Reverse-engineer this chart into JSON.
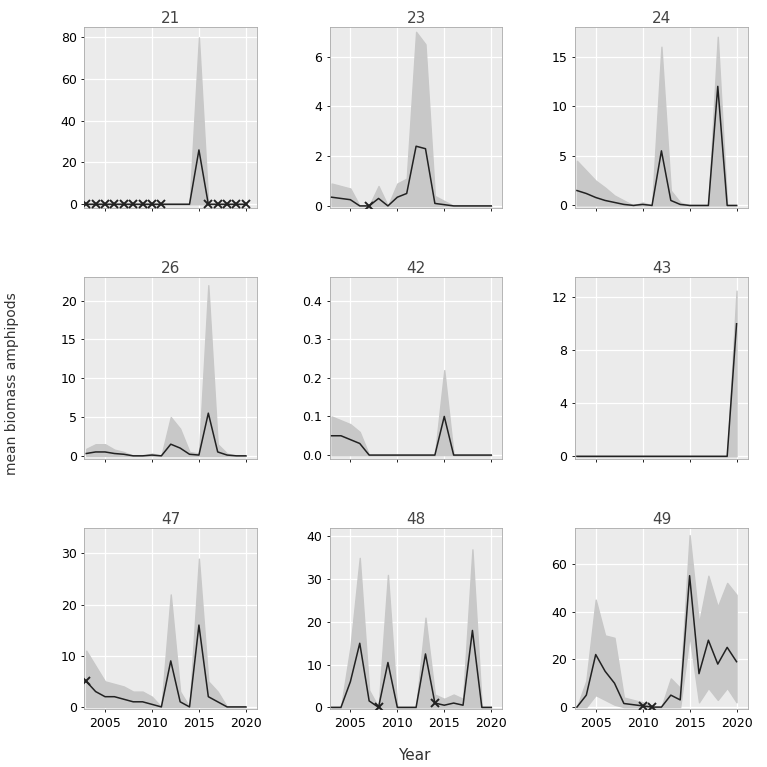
{
  "panels": [
    {
      "id": "21",
      "years": [
        2003,
        2004,
        2005,
        2006,
        2007,
        2008,
        2009,
        2010,
        2011,
        2012,
        2013,
        2014,
        2015,
        2016,
        2017,
        2018,
        2019,
        2020
      ],
      "mean": [
        0,
        0,
        0,
        0,
        0,
        0,
        0,
        0,
        0,
        0,
        0,
        0,
        26,
        0,
        0,
        0,
        0,
        0
      ],
      "sd_upper": [
        0,
        0,
        0,
        0,
        0,
        0,
        0,
        0,
        0,
        0,
        0,
        0,
        80,
        0,
        0,
        0,
        0,
        0
      ],
      "sd_lower": [
        0,
        0,
        0,
        0,
        0,
        0,
        0,
        0,
        0,
        0,
        0,
        0,
        0,
        0,
        0,
        0,
        0,
        0
      ],
      "low_sample": [
        2003,
        2004,
        2005,
        2006,
        2007,
        2008,
        2009,
        2010,
        2011,
        2016,
        2017,
        2018,
        2019,
        2020
      ],
      "yticks": [
        0,
        20,
        40,
        60,
        80
      ],
      "ylim": [
        -2,
        85
      ]
    },
    {
      "id": "23",
      "years": [
        2003,
        2004,
        2005,
        2006,
        2007,
        2008,
        2009,
        2010,
        2011,
        2012,
        2013,
        2014,
        2015,
        2016,
        2017,
        2018,
        2019,
        2020
      ],
      "mean": [
        0.35,
        0.3,
        0.25,
        0.0,
        0.0,
        0.3,
        0.0,
        0.35,
        0.5,
        2.4,
        2.3,
        0.1,
        0.05,
        0.0,
        0.0,
        0.0,
        0.0,
        0.0
      ],
      "sd_upper": [
        0.9,
        0.8,
        0.7,
        0.0,
        0.0,
        0.8,
        0.0,
        0.9,
        1.1,
        7.0,
        6.5,
        0.4,
        0.2,
        0.0,
        0.0,
        0.0,
        0.0,
        0.0
      ],
      "sd_lower": [
        0.0,
        0.0,
        0.0,
        0.0,
        0.0,
        0.0,
        0.0,
        0.0,
        0.0,
        0.0,
        0.0,
        0.0,
        0.0,
        0.0,
        0.0,
        0.0,
        0.0,
        0.0
      ],
      "low_sample": [
        2007
      ],
      "yticks": [
        0,
        2,
        4,
        6
      ],
      "ylim": [
        -0.1,
        7.2
      ]
    },
    {
      "id": "24",
      "years": [
        2003,
        2004,
        2005,
        2006,
        2007,
        2008,
        2009,
        2010,
        2011,
        2012,
        2013,
        2014,
        2015,
        2016,
        2017,
        2018,
        2019,
        2020
      ],
      "mean": [
        1.5,
        1.2,
        0.8,
        0.5,
        0.3,
        0.1,
        0.0,
        0.1,
        0.0,
        5.5,
        0.5,
        0.1,
        0.0,
        0.0,
        0.0,
        12.0,
        0.0,
        0.0
      ],
      "sd_upper": [
        4.5,
        3.5,
        2.5,
        1.8,
        1.0,
        0.5,
        0.0,
        0.3,
        0.0,
        16.0,
        1.5,
        0.3,
        0.0,
        0.0,
        0.0,
        17.0,
        0.0,
        0.0
      ],
      "sd_lower": [
        0.0,
        0.0,
        0.0,
        0.0,
        0.0,
        0.0,
        0.0,
        0.0,
        0.0,
        0.0,
        0.0,
        0.0,
        0.0,
        0.0,
        0.0,
        0.0,
        0.0,
        0.0
      ],
      "low_sample": [],
      "yticks": [
        0,
        5,
        10,
        15
      ],
      "ylim": [
        -0.3,
        18
      ]
    },
    {
      "id": "26",
      "years": [
        2003,
        2004,
        2005,
        2006,
        2007,
        2008,
        2009,
        2010,
        2011,
        2012,
        2013,
        2014,
        2015,
        2016,
        2017,
        2018,
        2019,
        2020
      ],
      "mean": [
        0.3,
        0.5,
        0.5,
        0.3,
        0.2,
        0.0,
        0.0,
        0.1,
        0.0,
        1.5,
        1.0,
        0.2,
        0.1,
        5.5,
        0.5,
        0.1,
        0.0,
        0.0
      ],
      "sd_upper": [
        0.9,
        1.5,
        1.5,
        0.8,
        0.5,
        0.0,
        0.0,
        0.3,
        0.0,
        5.0,
        3.5,
        0.5,
        0.3,
        22.0,
        1.5,
        0.3,
        0.0,
        0.0
      ],
      "sd_lower": [
        0.0,
        0.0,
        0.0,
        0.0,
        0.0,
        0.0,
        0.0,
        0.0,
        0.0,
        0.0,
        0.0,
        0.0,
        0.0,
        0.0,
        0.0,
        0.0,
        0.0,
        0.0
      ],
      "low_sample": [],
      "yticks": [
        0,
        5,
        10,
        15,
        20
      ],
      "ylim": [
        -0.4,
        23
      ]
    },
    {
      "id": "42",
      "years": [
        2003,
        2004,
        2005,
        2006,
        2007,
        2008,
        2009,
        2010,
        2011,
        2012,
        2013,
        2014,
        2015,
        2016,
        2017,
        2018,
        2019,
        2020
      ],
      "mean": [
        0.05,
        0.05,
        0.04,
        0.03,
        0.0,
        0.0,
        0.0,
        0.0,
        0.0,
        0.0,
        0.0,
        0.0,
        0.1,
        0.0,
        0.0,
        0.0,
        0.0,
        0.0
      ],
      "sd_upper": [
        0.1,
        0.09,
        0.08,
        0.06,
        0.0,
        0.0,
        0.0,
        0.0,
        0.0,
        0.0,
        0.0,
        0.0,
        0.22,
        0.0,
        0.0,
        0.0,
        0.0,
        0.0
      ],
      "sd_lower": [
        0.0,
        0.0,
        0.0,
        0.0,
        0.0,
        0.0,
        0.0,
        0.0,
        0.0,
        0.0,
        0.0,
        0.0,
        0.0,
        0.0,
        0.0,
        0.0,
        0.0,
        0.0
      ],
      "low_sample": [],
      "yticks": [
        0.0,
        0.1,
        0.2,
        0.3,
        0.4
      ],
      "ylim": [
        -0.01,
        0.46
      ]
    },
    {
      "id": "43",
      "years": [
        2003,
        2004,
        2005,
        2006,
        2007,
        2008,
        2009,
        2010,
        2011,
        2012,
        2013,
        2014,
        2015,
        2016,
        2017,
        2018,
        2019,
        2020
      ],
      "mean": [
        0.0,
        0.0,
        0.0,
        0.0,
        0.0,
        0.0,
        0.0,
        0.0,
        0.0,
        0.0,
        0.0,
        0.0,
        0.0,
        0.0,
        0.0,
        0.0,
        0.0,
        10.0
      ],
      "sd_upper": [
        0.0,
        0.0,
        0.0,
        0.0,
        0.0,
        0.0,
        0.0,
        0.0,
        0.0,
        0.0,
        0.0,
        0.0,
        0.0,
        0.0,
        0.0,
        0.0,
        0.0,
        12.5
      ],
      "sd_lower": [
        0.0,
        0.0,
        0.0,
        0.0,
        0.0,
        0.0,
        0.0,
        0.0,
        0.0,
        0.0,
        0.0,
        0.0,
        0.0,
        0.0,
        0.0,
        0.0,
        0.0,
        0.0
      ],
      "low_sample": [],
      "yticks": [
        0,
        4,
        8,
        12
      ],
      "ylim": [
        -0.2,
        13.5
      ]
    },
    {
      "id": "47",
      "years": [
        2003,
        2004,
        2005,
        2006,
        2007,
        2008,
        2009,
        2010,
        2011,
        2012,
        2013,
        2014,
        2015,
        2016,
        2017,
        2018,
        2019,
        2020
      ],
      "mean": [
        5.0,
        3.0,
        2.0,
        2.0,
        1.5,
        1.0,
        1.0,
        0.5,
        0.0,
        9.0,
        1.0,
        0.0,
        16.0,
        2.0,
        1.0,
        0.0,
        0.0,
        0.0
      ],
      "sd_upper": [
        11.0,
        8.0,
        5.0,
        4.5,
        4.0,
        3.0,
        3.0,
        2.0,
        0.0,
        22.0,
        3.0,
        0.0,
        29.0,
        5.0,
        3.0,
        0.0,
        0.0,
        0.0
      ],
      "sd_lower": [
        0.0,
        0.0,
        0.0,
        0.0,
        0.0,
        0.0,
        0.0,
        0.0,
        0.0,
        0.0,
        0.0,
        0.0,
        0.0,
        0.0,
        0.0,
        0.0,
        0.0,
        0.0
      ],
      "low_sample": [
        2003
      ],
      "yticks": [
        0,
        10,
        20,
        30
      ],
      "ylim": [
        -0.5,
        35
      ]
    },
    {
      "id": "48",
      "years": [
        2003,
        2004,
        2005,
        2006,
        2007,
        2008,
        2009,
        2010,
        2011,
        2012,
        2013,
        2014,
        2015,
        2016,
        2017,
        2018,
        2019,
        2020
      ],
      "mean": [
        0.0,
        0.0,
        6.0,
        15.0,
        1.5,
        0.0,
        10.5,
        0.0,
        0.0,
        0.0,
        12.5,
        1.0,
        0.5,
        1.0,
        0.5,
        18.0,
        0.0,
        0.0
      ],
      "sd_upper": [
        0.0,
        0.0,
        14.0,
        35.0,
        4.0,
        0.0,
        31.0,
        0.0,
        0.0,
        0.0,
        21.0,
        3.0,
        2.0,
        3.0,
        2.0,
        37.0,
        0.0,
        0.0
      ],
      "sd_lower": [
        0.0,
        0.0,
        0.0,
        0.0,
        0.0,
        0.0,
        0.0,
        0.0,
        0.0,
        0.0,
        0.0,
        0.0,
        0.0,
        0.0,
        0.0,
        0.0,
        0.0,
        0.0
      ],
      "low_sample": [
        2008,
        2014
      ],
      "yticks": [
        0,
        10,
        20,
        30,
        40
      ],
      "ylim": [
        -0.5,
        42
      ]
    },
    {
      "id": "49",
      "years": [
        2003,
        2004,
        2005,
        2006,
        2007,
        2008,
        2009,
        2010,
        2011,
        2012,
        2013,
        2014,
        2015,
        2016,
        2017,
        2018,
        2019,
        2020
      ],
      "mean": [
        0.0,
        5.0,
        22.0,
        15.0,
        10.0,
        1.5,
        1.0,
        0.5,
        0.0,
        0.0,
        5.0,
        3.0,
        55.0,
        14.0,
        28.0,
        18.0,
        25.0,
        19.0
      ],
      "sd_upper": [
        0.0,
        11.0,
        45.0,
        30.0,
        29.0,
        4.0,
        3.0,
        2.0,
        0.0,
        0.0,
        12.0,
        8.0,
        72.0,
        35.0,
        55.0,
        42.0,
        52.0,
        47.0
      ],
      "sd_lower": [
        0.0,
        0.0,
        5.0,
        3.0,
        1.0,
        0.0,
        0.0,
        0.0,
        0.0,
        0.0,
        0.0,
        0.0,
        30.0,
        2.0,
        8.0,
        3.0,
        8.0,
        2.0
      ],
      "low_sample": [
        2010,
        2011
      ],
      "yticks": [
        0,
        20,
        40,
        60
      ],
      "ylim": [
        -1,
        75
      ]
    }
  ],
  "shade_color": "#c8c8c8",
  "line_color": "#222222",
  "bg_color": "#ebebeb",
  "grid_color": "#ffffff",
  "xlabel": "Year",
  "ylabel": "mean biomass amphipods",
  "title_fontsize": 11,
  "label_fontsize": 10,
  "tick_fontsize": 9
}
